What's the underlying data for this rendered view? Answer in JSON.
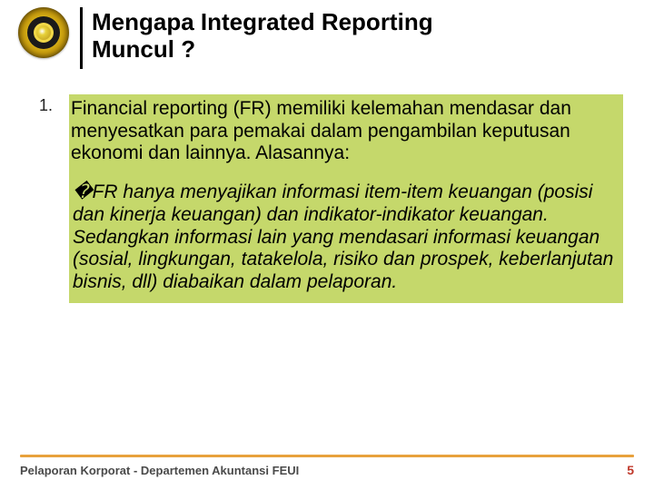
{
  "header": {
    "title_line1": "Mengapa Integrated Reporting",
    "title_line2": "Muncul ?"
  },
  "content": {
    "list_number": "1.",
    "paragraph1": "Financial reporting (FR) memiliki kelemahan mendasar dan menyesatkan para pemakai dalam pengambilan keputusan ekonomi dan lainnya. Alasannya:",
    "paragraph2": "�FR hanya menyajikan informasi  item-item keuangan (posisi dan kinerja keuangan) dan indikator-indikator keuangan. Sedangkan informasi lain yang mendasari informasi keuangan (sosial, lingkungan, tatakelola, risiko dan prospek, keberlanjutan bisnis, dll) diabaikan dalam pelaporan."
  },
  "footer": {
    "text": "Pelaporan Korporat - Departemen Akuntansi FEUI",
    "page": "5"
  },
  "colors": {
    "highlight_bg": "#c5d86b",
    "footer_line": "#e8a13c",
    "page_num": "#c0392b"
  }
}
